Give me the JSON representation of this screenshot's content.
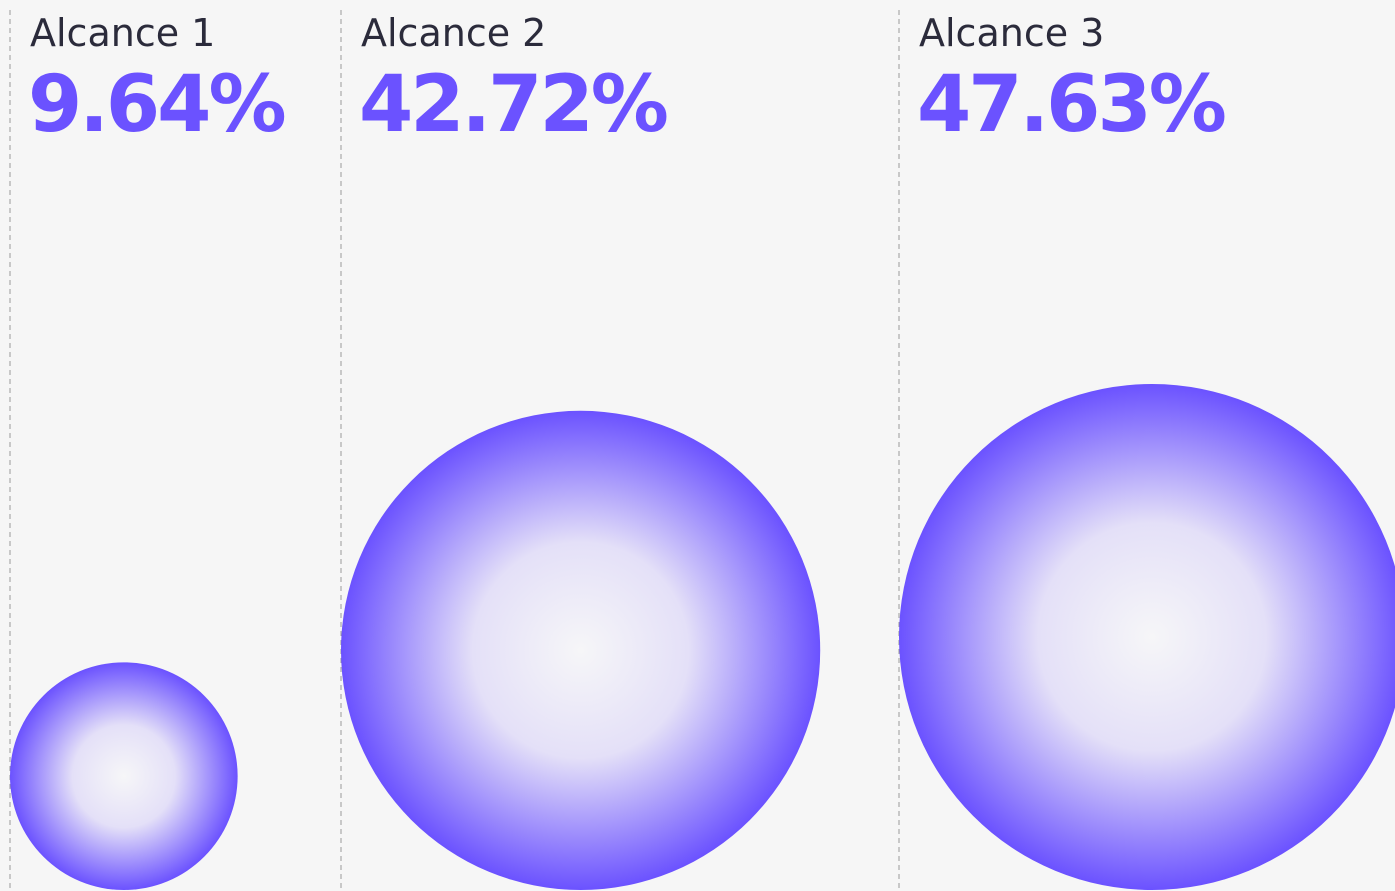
{
  "chart_data": {
    "type": "bubble",
    "categories": [
      "Alcance 1",
      "Alcance 2",
      "Alcance 3"
    ],
    "values": [
      9.64,
      42.72,
      47.63
    ],
    "value_labels": [
      "9.64%",
      "42.72%",
      "47.63%"
    ],
    "color": "#6b52ff"
  }
}
